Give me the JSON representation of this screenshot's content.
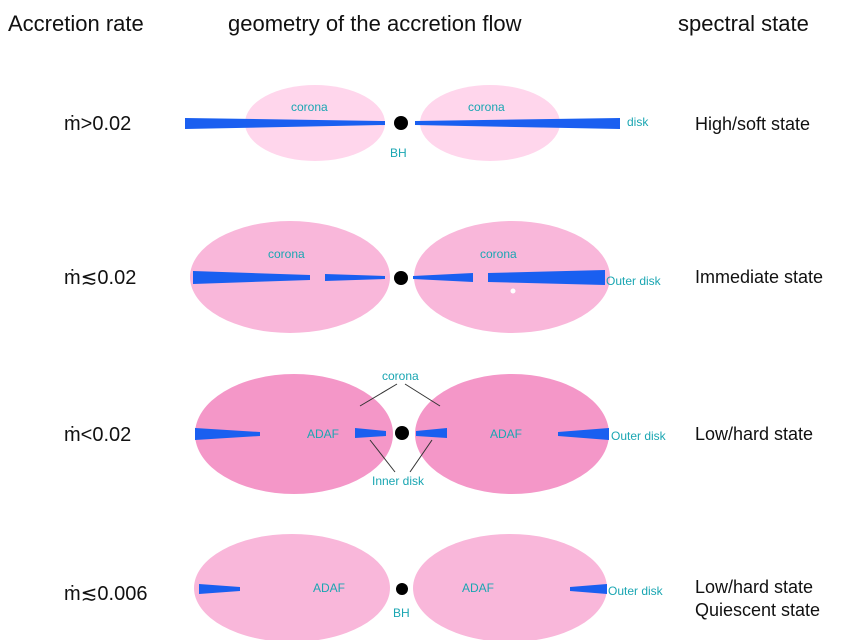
{
  "headers": {
    "accretion_rate": "Accretion rate",
    "geometry": "geometry of the accretion flow",
    "spectral_state": "spectral state"
  },
  "colors": {
    "disk": "#1a5ff0",
    "label": "#1aa6b2",
    "corona_light": "#ffd6ec",
    "corona_medium": "#f9b7da",
    "corona_dark": "#f497c8",
    "black_hole": "#000000"
  },
  "rows": [
    {
      "rate": "ṁ>0.02",
      "state": "High/soft state",
      "state_line2": "",
      "labels": {
        "corona_left": "corona",
        "corona_right": "corona",
        "disk": "disk",
        "bh": "BH"
      }
    },
    {
      "rate": "ṁ≲0.02",
      "state": "Immediate state",
      "state_line2": "",
      "labels": {
        "corona_left": "corona",
        "corona_right": "corona",
        "outer_disk": "Outer disk"
      }
    },
    {
      "rate": "ṁ<0.02",
      "state": "Low/hard state",
      "state_line2": "",
      "labels": {
        "corona": "corona",
        "adaf_left": "ADAF",
        "adaf_right": "ADAF",
        "inner_disk": "Inner disk",
        "outer_disk": "Outer disk"
      }
    },
    {
      "rate": "ṁ≲0.006",
      "state": "Low/hard state",
      "state_line2": "Quiescent state",
      "labels": {
        "adaf_left": "ADAF",
        "adaf_right": "ADAF",
        "outer_disk": "Outer disk",
        "bh": "BH"
      }
    }
  ]
}
